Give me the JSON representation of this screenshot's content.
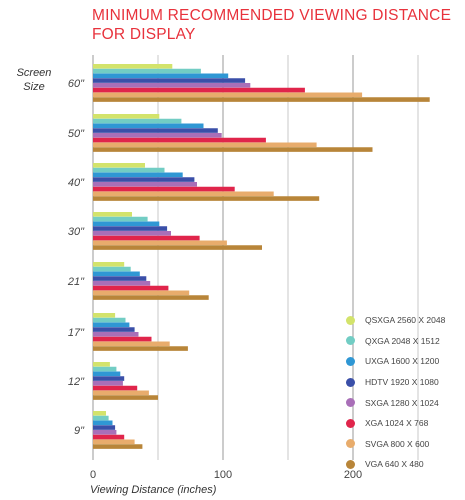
{
  "chart_data": {
    "type": "bar",
    "orientation": "horizontal",
    "title_lines": [
      "MINIMUM RECOMMENDED VIEWING DISTANCE",
      "FOR DISPLAY"
    ],
    "ylabel_lines": [
      "Screen",
      "Size"
    ],
    "xlabel": "Viewing Distance (inches)",
    "xlim": [
      0,
      270
    ],
    "xticks": [
      0,
      100,
      200
    ],
    "grid": true,
    "legend_position": "lower-right",
    "categories": [
      "60\"",
      "50\"",
      "40\"",
      "30\"",
      "21\"",
      "17\"",
      "12\"",
      "9\""
    ],
    "series": [
      {
        "name": "QSXGA 2560 X 2048",
        "color": "#d3e36b",
        "values": [
          61,
          51,
          40,
          30,
          24,
          17,
          13,
          10
        ]
      },
      {
        "name": "QXGA 2048 X 1512",
        "color": "#72cdc4",
        "values": [
          83,
          68,
          55,
          42,
          29,
          25,
          18,
          12
        ]
      },
      {
        "name": "UXGA 1600 X 1200",
        "color": "#2f97d4",
        "values": [
          104,
          85,
          69,
          51,
          36,
          28,
          21,
          15
        ]
      },
      {
        "name": "HDTV 1920 X 1080",
        "color": "#3a4fa8",
        "values": [
          117,
          96,
          78,
          57,
          41,
          32,
          24,
          17
        ]
      },
      {
        "name": "SXGA 1280 X 1024",
        "color": "#a96fb8",
        "values": [
          121,
          99,
          80,
          60,
          44,
          35,
          23,
          18
        ]
      },
      {
        "name": "XGA 1024 X 768",
        "color": "#e0254b",
        "values": [
          163,
          133,
          109,
          82,
          58,
          45,
          34,
          24
        ]
      },
      {
        "name": "SVGA 800 X 600",
        "color": "#e8ac6c",
        "values": [
          207,
          172,
          139,
          103,
          74,
          59,
          43,
          32
        ]
      },
      {
        "name": "VGA 640 X 480",
        "color": "#b88539",
        "values": [
          259,
          215,
          174,
          130,
          89,
          73,
          50,
          38
        ]
      }
    ]
  }
}
